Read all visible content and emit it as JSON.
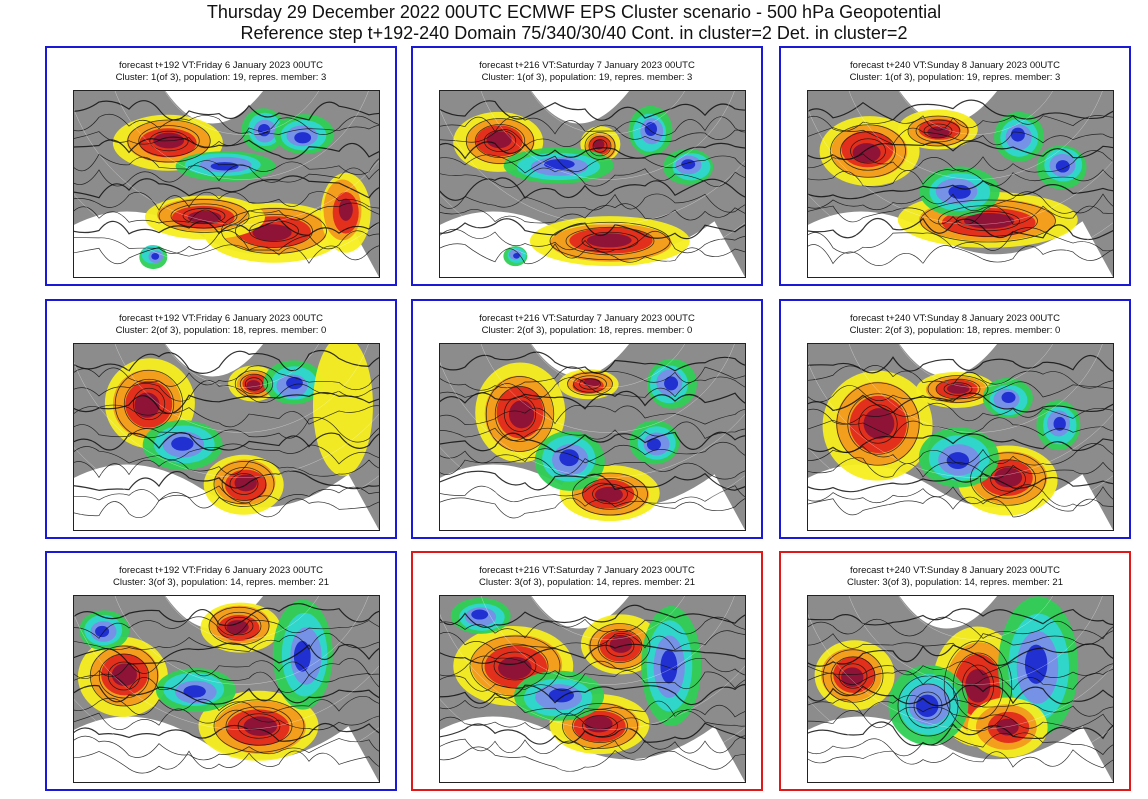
{
  "header": {
    "title_line1": "Thursday 29 December 2022 00UTC ECMWF EPS Cluster scenario - 500 hPa Geopotential",
    "title_line2": "Reference step t+192-240 Domain 75/340/30/40 Cont. in cluster=2 Det. in cluster=2"
  },
  "colors": {
    "cluster_border_blue": "#1a1ad6",
    "cluster_border_red": "#e01818",
    "land_grey": "#8c8c8c",
    "anomaly_yellow": "#f5ee1f",
    "anomaly_orange": "#f29a1e",
    "anomaly_red": "#e22a1c",
    "anomaly_darkred": "#8a1238",
    "anomaly_green": "#2fcf55",
    "anomaly_cyan": "#2fd6d0",
    "anomaly_blue": "#7a8ee8",
    "anomaly_darkblue": "#1b2bd0"
  },
  "panels": [
    {
      "line1": "forecast t+192 VT:Friday 6 January 2023 00UTC",
      "line2": "Cluster: 1(of 3), population: 19, repres. member: 3",
      "border": "blue"
    },
    {
      "line1": "forecast t+216 VT:Saturday 7 January 2023 00UTC",
      "line2": "Cluster: 1(of 3), population: 19, repres. member: 3",
      "border": "blue"
    },
    {
      "line1": "forecast t+240 VT:Sunday 8 January 2023 00UTC",
      "line2": "Cluster: 1(of 3), population: 19, repres. member: 3",
      "border": "blue"
    },
    {
      "line1": "forecast t+192 VT:Friday 6 January 2023 00UTC",
      "line2": "Cluster: 2(of 3), population: 18, repres. member: 0",
      "border": "blue"
    },
    {
      "line1": "forecast t+216 VT:Saturday 7 January 2023 00UTC",
      "line2": "Cluster: 2(of 3), population: 18, repres. member: 0",
      "border": "blue"
    },
    {
      "line1": "forecast t+240 VT:Sunday 8 January 2023 00UTC",
      "line2": "Cluster: 2(of 3), population: 18, repres. member: 0",
      "border": "blue"
    },
    {
      "line1": "forecast t+192 VT:Friday 6 January 2023 00UTC",
      "line2": "Cluster: 3(of 3), population: 14, repres. member: 21",
      "border": "blue"
    },
    {
      "line1": "forecast t+216 VT:Saturday 7 January 2023 00UTC",
      "line2": "Cluster: 3(of 3), population: 14, repres. member: 21",
      "border": "red"
    },
    {
      "line1": "forecast t+240 VT:Sunday 8 January 2023 00UTC",
      "line2": "Cluster: 3(of 3), population: 14, repres. member: 21",
      "border": "red"
    }
  ]
}
